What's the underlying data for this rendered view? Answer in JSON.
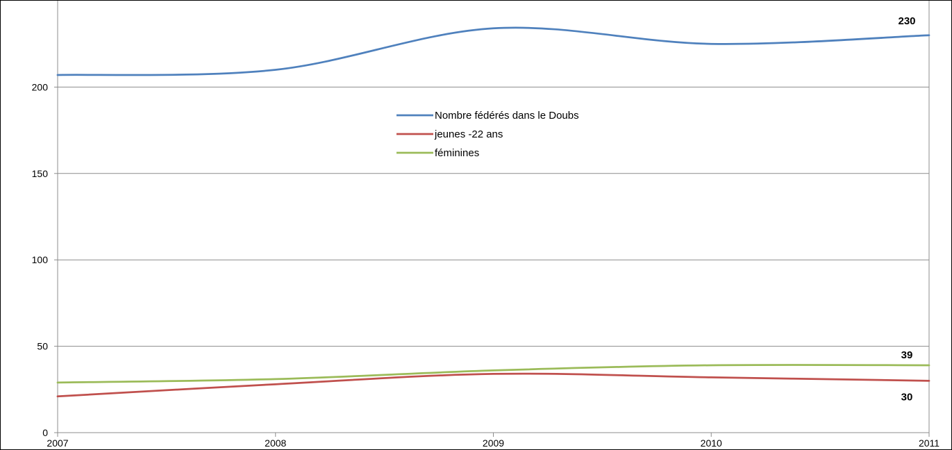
{
  "chart_data": {
    "type": "line",
    "title": "",
    "xlabel": "",
    "ylabel": "",
    "x": [
      2007,
      2008,
      2009,
      2010,
      2011
    ],
    "x_tick_labels": [
      "2007",
      "2008",
      "2009",
      "2010",
      "2011"
    ],
    "ylim": [
      0,
      250
    ],
    "y_ticks": [
      0,
      50,
      100,
      150,
      200
    ],
    "y_tick_labels": [
      "0",
      "50",
      "100",
      "150",
      "200"
    ],
    "grid": "horizontal",
    "legend_position": "top-center",
    "series": [
      {
        "name": "Nombre fédérés dans le Doubs",
        "color": "#4f81bd",
        "values": [
          207,
          210,
          234,
          225,
          230
        ],
        "end_label": "230"
      },
      {
        "name": "jeunes -22 ans",
        "color": "#c0504d",
        "values": [
          21,
          28,
          34,
          32,
          30
        ],
        "end_label": "30"
      },
      {
        "name": "féminines",
        "color": "#9bbb59",
        "values": [
          29,
          31,
          36,
          39,
          39
        ],
        "end_label": "39"
      }
    ]
  }
}
